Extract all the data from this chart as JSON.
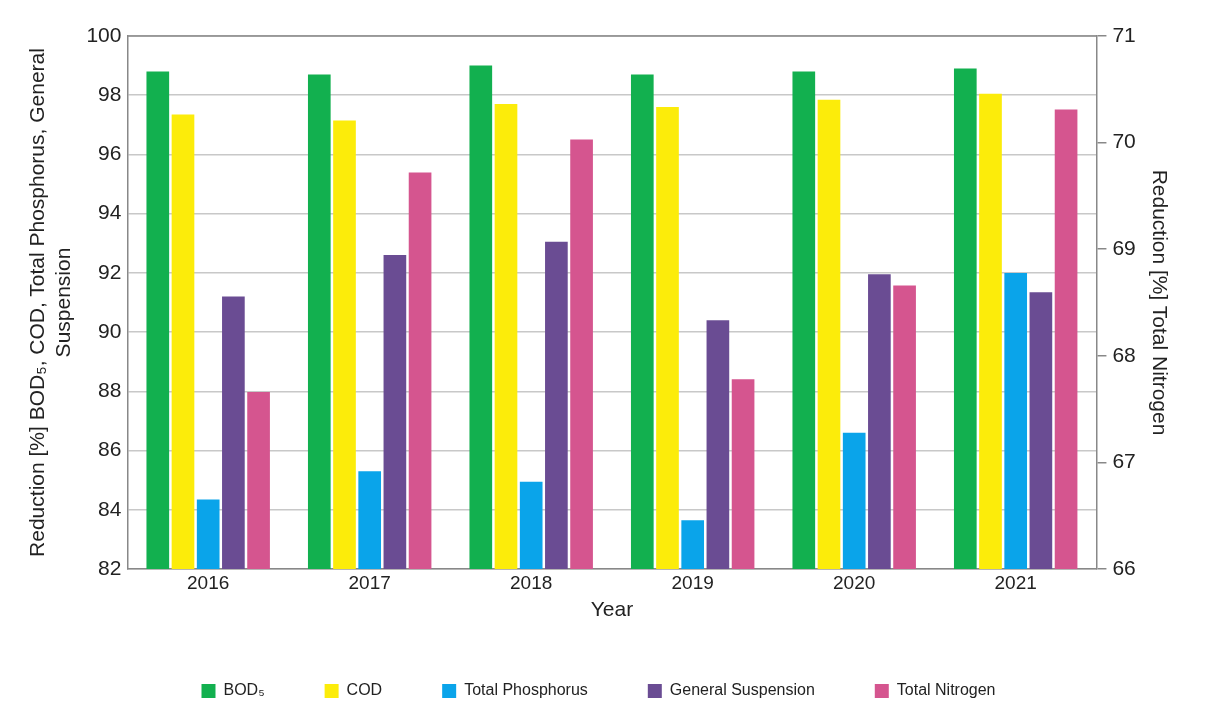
{
  "chart_data": {
    "type": "bar",
    "xlabel": "Year",
    "ylabel": "Reduction [%] BOD₅, COD, Total Phosphorus, General Suspension",
    "y2label": "Reduction [%] Total Nitrogen",
    "categories": [
      "2016",
      "2017",
      "2018",
      "2019",
      "2020",
      "2021"
    ],
    "series": [
      {
        "name": "BOD₅",
        "color": "#12b04f",
        "values": [
          98.8,
          98.7,
          99.0,
          98.7,
          98.8,
          98.9
        ]
      },
      {
        "name": "COD",
        "color": "#fcec0a",
        "values": [
          97.35,
          97.15,
          97.7,
          97.6,
          97.85,
          98.05
        ]
      },
      {
        "name": "Total Phosphorus",
        "color": "#0aa4ea",
        "values": [
          84.35,
          85.3,
          84.95,
          83.65,
          86.6,
          92.0
        ]
      },
      {
        "name": "General Suspension",
        "color": "#6a4c93",
        "values": [
          91.2,
          92.6,
          93.05,
          90.4,
          91.95,
          91.35
        ]
      },
      {
        "name": "Total Nitrogen",
        "color": "#d5558f",
        "axis": "y2",
        "values": [
          67.66,
          69.72,
          70.03,
          67.78,
          68.66,
          70.31
        ]
      }
    ],
    "ylim": [
      82,
      100
    ],
    "yticks": [
      82,
      84,
      86,
      88,
      90,
      92,
      94,
      96,
      98,
      100
    ],
    "y2lim": [
      66,
      71
    ],
    "y2ticks": [
      66,
      67,
      68,
      69,
      70,
      71
    ],
    "grid": "y",
    "legend": "bottom"
  }
}
